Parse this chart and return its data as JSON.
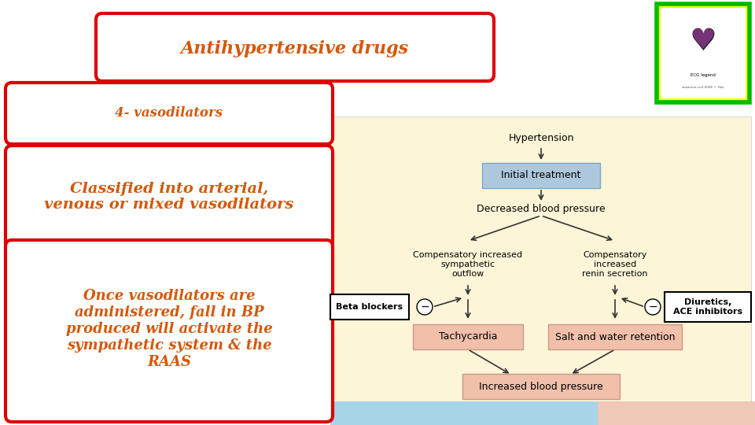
{
  "bg_color": "#ffffff",
  "title_text": "Antihypertensive drugs",
  "title_color": "#d4580a",
  "box1_text": "4- vasodilators",
  "box2_text": "Classified into arterial,\nvenous or mixed vasodilators",
  "box3_text": "Once vasodilators are\nadministered, fall in BP\nproduced will activate the\nsympathetic system & the\nRAAS",
  "text_color_orange": "#d4580a",
  "border_color_red": "#dd0000",
  "diagram_bg": "#fdf5d8",
  "bottom_bar_blue": "#a8d4e8",
  "bottom_bar_pink": "#f0c8b8",
  "light_blue_box": "#adc8dc",
  "light_red_box": "#f0c0aa",
  "arrow_color": "#333333",
  "logo_yellow": "#ffff00",
  "logo_green": "#00bb00"
}
